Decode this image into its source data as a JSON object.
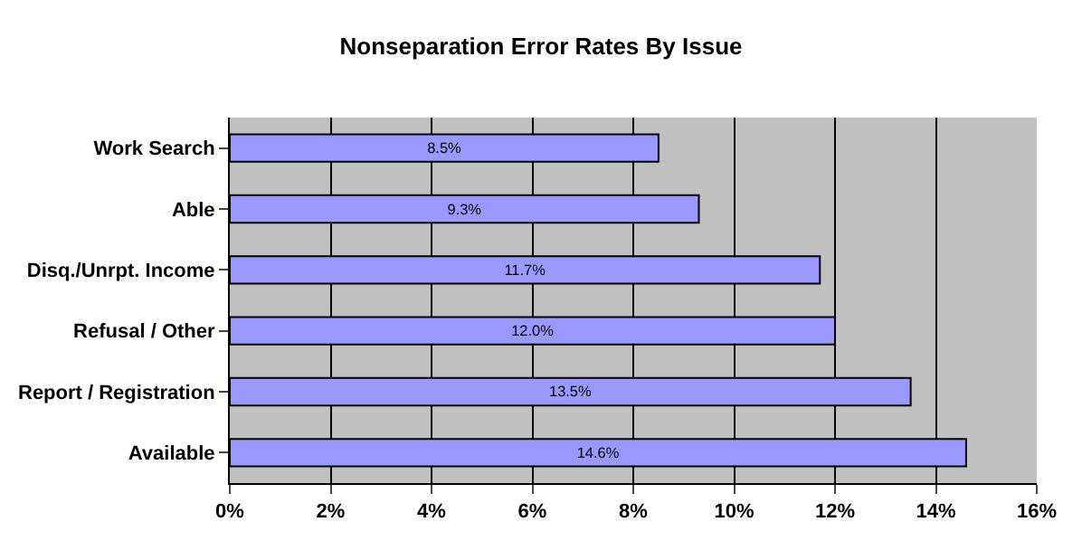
{
  "chart_data": {
    "type": "bar",
    "orientation": "horizontal",
    "title": "Nonseparation Error Rates By Issue",
    "categories": [
      "Work Search",
      "Able",
      "Disq./Unrpt. Income",
      "Refusal / Other",
      "Report / Registration",
      "Available"
    ],
    "values": [
      8.5,
      9.3,
      11.7,
      12.0,
      13.5,
      14.6
    ],
    "value_labels": [
      "8.5%",
      "9.3%",
      "11.7%",
      "12.0%",
      "13.5%",
      "14.6%"
    ],
    "color": "#9999ff",
    "xlim": [
      0,
      16
    ],
    "xticks": [
      {
        "value": 0,
        "label": "0%"
      },
      {
        "value": 2,
        "label": "2%"
      },
      {
        "value": 4,
        "label": "4%"
      },
      {
        "value": 6,
        "label": "6%"
      },
      {
        "value": 8,
        "label": "8%"
      },
      {
        "value": 10,
        "label": "10%"
      },
      {
        "value": 12,
        "label": "12%"
      },
      {
        "value": 14,
        "label": "14%"
      },
      {
        "value": 16,
        "label": "16%"
      }
    ],
    "grid": "x"
  }
}
